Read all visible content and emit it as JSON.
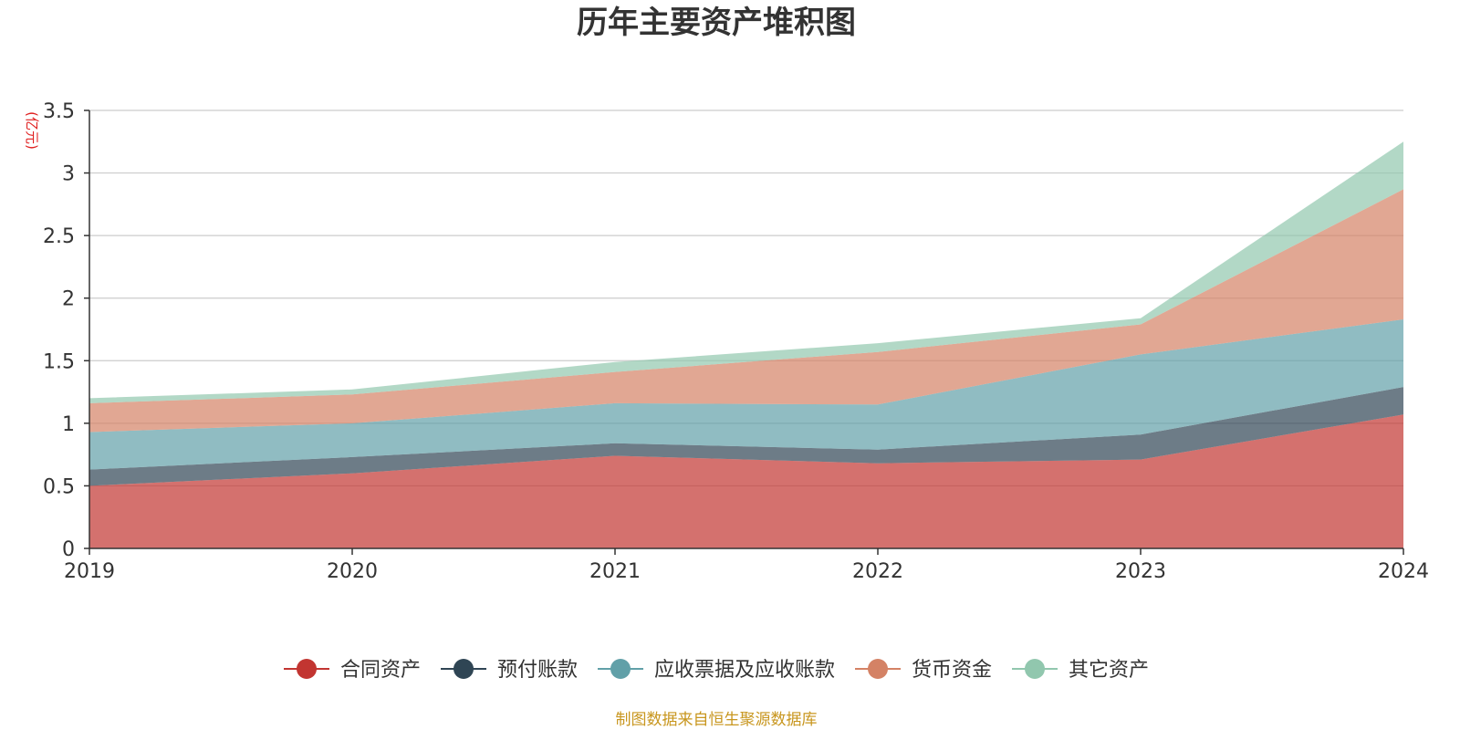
{
  "chart_data": {
    "type": "area",
    "stacked": true,
    "title": "历年主要资产堆积图",
    "ylabel": "(亿元)",
    "x": [
      "2019",
      "2020",
      "2021",
      "2022",
      "2023",
      "2024"
    ],
    "ylim": [
      0,
      3.5
    ],
    "yticks": [
      "0",
      "0.5",
      "1",
      "1.5",
      "2",
      "2.5",
      "3",
      "3.5"
    ],
    "grid": true,
    "legend_position": "bottom",
    "series": [
      {
        "name": "合同资产",
        "color": "#c23531",
        "values": [
          0.5,
          0.6,
          0.74,
          0.68,
          0.71,
          1.07
        ]
      },
      {
        "name": "预付账款",
        "color": "#2f4554",
        "values": [
          0.13,
          0.13,
          0.1,
          0.11,
          0.2,
          0.22
        ]
      },
      {
        "name": "应收票据及应收账款",
        "color": "#61a0a8",
        "values": [
          0.3,
          0.27,
          0.32,
          0.36,
          0.64,
          0.54
        ]
      },
      {
        "name": "货币资金",
        "color": "#d48265",
        "values": [
          0.23,
          0.23,
          0.25,
          0.42,
          0.24,
          1.04
        ]
      },
      {
        "name": "其它资产",
        "color": "#91c7ae",
        "values": [
          0.04,
          0.04,
          0.08,
          0.07,
          0.05,
          0.38
        ]
      }
    ]
  },
  "source_note": "制图数据来自恒生聚源数据库"
}
